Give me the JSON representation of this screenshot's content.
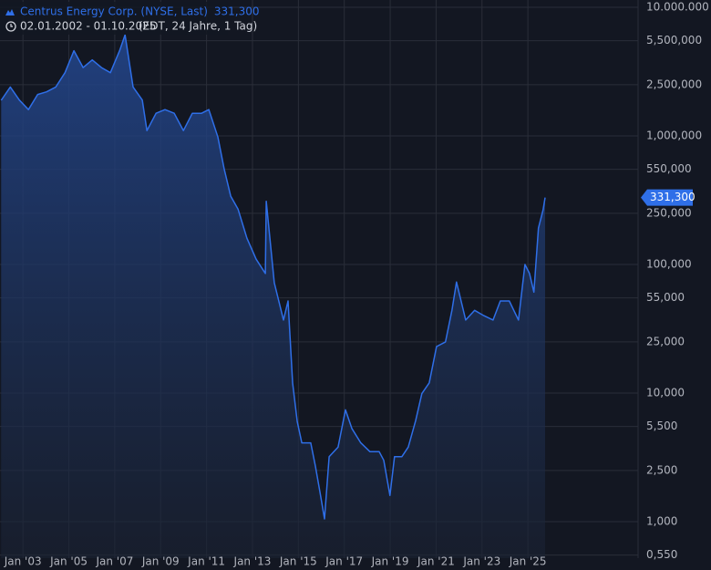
{
  "chart_data": {
    "type": "line",
    "title": "Centrus Energy Corp. (NYSE, Last)",
    "date_range": "02.01.2002 - 01.10.2025",
    "info": "(EDT, 24 Jahre, 1 Tag)",
    "log_scale": true,
    "grid": true,
    "area": true,
    "x": [
      2002.05,
      2002.45,
      2002.84,
      2003.24,
      2003.64,
      2004.03,
      2004.43,
      2004.83,
      2005.22,
      2005.62,
      2006.02,
      2006.42,
      2006.81,
      2007.21,
      2007.45,
      2007.8,
      2008.2,
      2008.4,
      2008.8,
      2009.19,
      2009.59,
      2009.99,
      2010.38,
      2010.78,
      2011.1,
      2011.49,
      2011.77,
      2012.05,
      2012.37,
      2012.76,
      2013.16,
      2013.56,
      2013.6,
      2013.95,
      2014.35,
      2014.55,
      2014.75,
      2014.95,
      2015.15,
      2015.54,
      2015.74,
      2015.94,
      2016.14,
      2016.34,
      2016.73,
      2017.05,
      2017.33,
      2017.72,
      2018.12,
      2018.52,
      2018.72,
      2018.99,
      2019.19,
      2019.51,
      2019.79,
      2020.11,
      2020.38,
      2020.7,
      2021.02,
      2021.41,
      2021.69,
      2021.89,
      2022.29,
      2022.68,
      2023.08,
      2023.48,
      2023.8,
      2024.19,
      2024.59,
      2024.87,
      2025.07,
      2025.26,
      2025.46,
      2025.66,
      2025.75
    ],
    "series": [
      {
        "name": "Centrus Energy Corp. (NYSE, Last)",
        "color": "#2f6fe8",
        "values": [
          1890000,
          2400000,
          1900000,
          1600000,
          2100000,
          2200000,
          2400000,
          3100000,
          4600000,
          3400000,
          3900000,
          3400000,
          3100000,
          4600000,
          6100000,
          2400000,
          1900000,
          1100000,
          1500000,
          1600000,
          1500000,
          1100000,
          1500000,
          1500000,
          1600000,
          980000,
          550000,
          340000,
          270000,
          160000,
          110000,
          85000,
          310000,
          72000,
          37000,
          52000,
          12000,
          6000,
          4100,
          4100,
          2700,
          1700,
          1050,
          3200,
          3800,
          7400,
          5300,
          4100,
          3500,
          3500,
          3000,
          1600,
          3200,
          3200,
          3800,
          6100,
          9900,
          12000,
          23000,
          25000,
          44000,
          73000,
          37000,
          44000,
          40000,
          37000,
          52000,
          52000,
          37000,
          100000,
          85000,
          61000,
          192000,
          266000,
          331300
        ],
        "last_label": "331,300"
      }
    ],
    "xlim": [
      2002.0,
      2029.8
    ],
    "xticks": [
      {
        "value": 2003,
        "label": "Jan '03"
      },
      {
        "value": 2005,
        "label": "Jan '05"
      },
      {
        "value": 2007,
        "label": "Jan '07"
      },
      {
        "value": 2009,
        "label": "Jan '09"
      },
      {
        "value": 2011,
        "label": "Jan '11"
      },
      {
        "value": 2013,
        "label": "Jan '13"
      },
      {
        "value": 2015,
        "label": "Jan '15"
      },
      {
        "value": 2017,
        "label": "Jan '17"
      },
      {
        "value": 2019,
        "label": "Jan '19"
      },
      {
        "value": 2021,
        "label": "Jan '21"
      },
      {
        "value": 2023,
        "label": "Jan '23"
      },
      {
        "value": 2025,
        "label": "Jan '25"
      }
    ],
    "ylim": [
      520,
      11400000
    ],
    "yticks": [
      {
        "value": 10000000,
        "label": "10.000.000"
      },
      {
        "value": 5500000,
        "label": "5,500,000"
      },
      {
        "value": 2500000,
        "label": "2,500,000"
      },
      {
        "value": 1000000,
        "label": "1,000,000"
      },
      {
        "value": 550000,
        "label": "550,000"
      },
      {
        "value": 250000,
        "label": "250,000"
      },
      {
        "value": 100000,
        "label": "100,000"
      },
      {
        "value": 55000,
        "label": "55,000"
      },
      {
        "value": 25000,
        "label": "25,000"
      },
      {
        "value": 10000,
        "label": "10,000"
      },
      {
        "value": 5500,
        "label": "5,500"
      },
      {
        "value": 2500,
        "label": "2,500"
      },
      {
        "value": 1000,
        "label": "1,000"
      },
      {
        "value": 550,
        "label": "0,550"
      }
    ]
  }
}
